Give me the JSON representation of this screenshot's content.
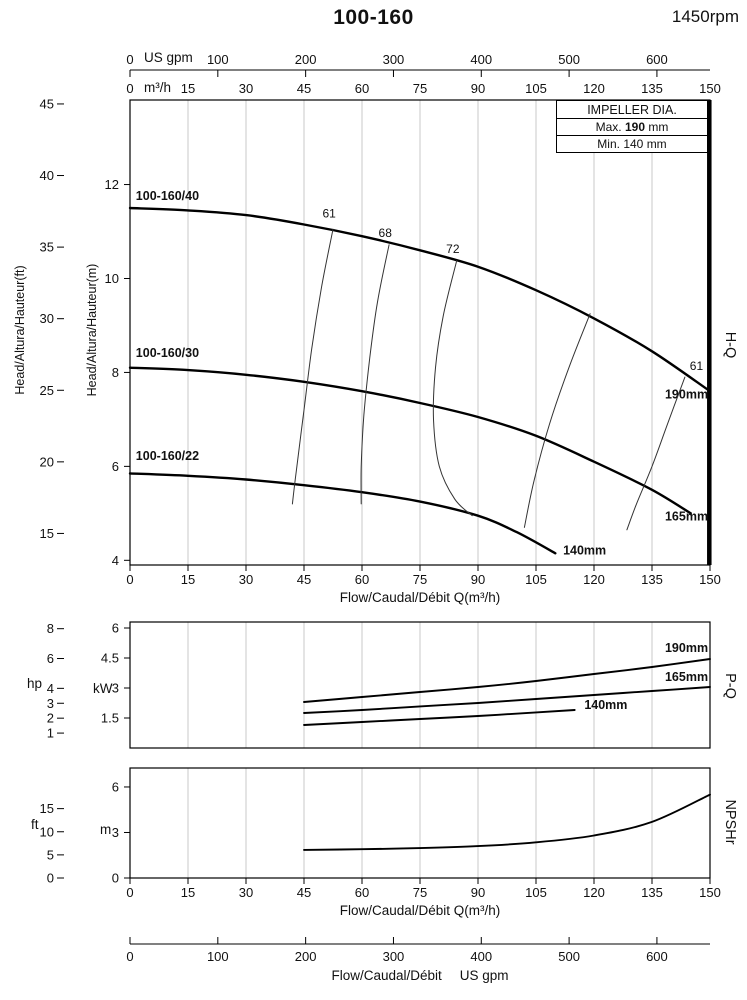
{
  "header": {
    "model": "100-160",
    "rpm": "1450rpm"
  },
  "impeller_box": {
    "title": "IMPELLER DIA.",
    "max_label": "Max.",
    "max_value": "190",
    "min_label": "Min.",
    "min_value": "140",
    "unit": "mm"
  },
  "axis_labels": {
    "flow_m3h": "Flow/Caudal/Débit Q(m³/h)",
    "flow_gpm_prefix": "Flow/Caudal/Débit",
    "gpm_unit": "US gpm",
    "m3h_unit": "m³/h",
    "head_ft": "Head/Altura/Hauteur(ft)",
    "head_m": "Head/Altura/Hauteur(m)",
    "hp_unit": "hp",
    "kw_unit": "kW",
    "ft_unit": "ft",
    "m_unit": "m",
    "hq": "H-Q",
    "pq": "P-Q",
    "npshr": "NPSHr"
  },
  "gpm_axis": {
    "unit": "US gpm",
    "ticks": [
      0,
      100,
      200,
      300,
      400,
      500,
      600
    ]
  },
  "chart_data": [
    {
      "id": "hq",
      "type": "line",
      "title": "H-Q",
      "xlabel": "Flow/Caudal/Débit Q(m³/h)",
      "ylabel_outer": "Head/Altura/Hauteur(ft)",
      "ylabel_inner": "Head/Altura/Hauteur(m)",
      "xlim": [
        0,
        150
      ],
      "ylim_m": [
        3.9,
        13.8
      ],
      "x_ticks": [
        0,
        15,
        30,
        45,
        60,
        75,
        90,
        105,
        120,
        135,
        150
      ],
      "y_ticks_m": [
        4,
        6,
        8,
        10,
        12
      ],
      "y_ticks_ft": [
        15,
        20,
        25,
        30,
        35,
        40,
        45
      ],
      "grid": "vertical",
      "legend": "none",
      "series": [
        {
          "name": "100-160/40",
          "impeller": "190mm",
          "x": [
            0,
            15,
            30,
            45,
            60,
            75,
            90,
            105,
            120,
            135,
            150
          ],
          "y": [
            11.5,
            11.45,
            11.35,
            11.15,
            10.9,
            10.6,
            10.25,
            9.75,
            9.15,
            8.45,
            7.6
          ],
          "name_pos": [
            1.5,
            11.67
          ],
          "end_label": "190mm",
          "end_label_pos": [
            149.5,
            7.45
          ],
          "end_anchor": "end"
        },
        {
          "name": "100-160/30",
          "impeller": "165mm",
          "x": [
            0,
            15,
            30,
            45,
            60,
            75,
            90,
            105,
            120,
            135,
            145
          ],
          "y": [
            8.1,
            8.05,
            7.95,
            7.8,
            7.6,
            7.35,
            7.05,
            6.65,
            6.1,
            5.5,
            5.0
          ],
          "name_pos": [
            1.5,
            8.33
          ],
          "end_label": "165mm",
          "end_label_pos": [
            149.5,
            4.85
          ],
          "end_anchor": "end"
        },
        {
          "name": "100-160/22",
          "impeller": "140mm",
          "x": [
            0,
            15,
            30,
            45,
            60,
            75,
            90,
            100,
            110
          ],
          "y": [
            5.85,
            5.8,
            5.72,
            5.6,
            5.45,
            5.25,
            4.95,
            4.6,
            4.15
          ],
          "name_pos": [
            1.5,
            6.14
          ],
          "end_label": "140mm",
          "end_label_pos": [
            112,
            4.12
          ],
          "end_anchor": "start"
        }
      ],
      "efficiency": [
        {
          "label": "61",
          "points": [
            [
              52.5,
              11.05
            ],
            [
              49.5,
              9.8
            ],
            [
              47,
              8.5
            ],
            [
              45,
              7.2
            ],
            [
              43,
              5.9
            ],
            [
              42,
              5.2
            ]
          ],
          "label_pos": [
            51.5,
            11.3
          ]
        },
        {
          "label": "68",
          "points": [
            [
              67,
              10.72
            ],
            [
              64,
              9.5
            ],
            [
              62,
              8.3
            ],
            [
              60.5,
              7.1
            ],
            [
              59.8,
              6.0
            ],
            [
              59.8,
              5.2
            ]
          ],
          "label_pos": [
            66,
            10.88
          ]
        },
        {
          "label": "72",
          "points": [
            [
              84.5,
              10.38
            ],
            [
              81,
              9.2
            ],
            [
              79,
              8.1
            ],
            [
              78.5,
              7.0
            ],
            [
              80,
              6.0
            ],
            [
              84,
              5.3
            ],
            [
              88.5,
              4.95
            ]
          ],
          "label_pos": [
            83.5,
            10.54
          ]
        },
        {
          "label": "",
          "points": [
            [
              119,
              9.25
            ],
            [
              113.5,
              8.1
            ],
            [
              108.5,
              6.9
            ],
            [
              104.5,
              5.7
            ],
            [
              102,
              4.7
            ]
          ],
          "label_pos": [
            0,
            0
          ]
        },
        {
          "label": "61",
          "points": [
            [
              143.5,
              7.9
            ],
            [
              139,
              6.9
            ],
            [
              135,
              6.0
            ],
            [
              131,
              5.2
            ],
            [
              128.5,
              4.65
            ]
          ],
          "label_pos": [
            146.5,
            8.05
          ]
        }
      ]
    },
    {
      "id": "pq",
      "type": "line",
      "title": "P-Q",
      "xlim": [
        0,
        150
      ],
      "ylim_kw": [
        0,
        6.3
      ],
      "y_ticks_kw": [
        1.5,
        3,
        4.5,
        6
      ],
      "y_ticks_hp": [
        1,
        2,
        3,
        4,
        6,
        8
      ],
      "grid": "vertical",
      "series": [
        {
          "name": "190mm",
          "x": [
            45,
            60,
            75,
            90,
            105,
            120,
            135,
            150
          ],
          "y": [
            2.3,
            2.55,
            2.8,
            3.05,
            3.35,
            3.7,
            4.05,
            4.45
          ],
          "label_pos": [
            149.5,
            4.8
          ],
          "anchor": "end"
        },
        {
          "name": "165mm",
          "x": [
            45,
            60,
            75,
            90,
            105,
            120,
            135,
            150
          ],
          "y": [
            1.75,
            1.9,
            2.08,
            2.25,
            2.45,
            2.65,
            2.85,
            3.05
          ],
          "label_pos": [
            149.5,
            3.35
          ],
          "anchor": "end"
        },
        {
          "name": "140mm",
          "x": [
            45,
            60,
            75,
            90,
            105,
            115
          ],
          "y": [
            1.15,
            1.3,
            1.45,
            1.6,
            1.78,
            1.9
          ],
          "label_pos": [
            117.5,
            1.95
          ],
          "anchor": "start"
        }
      ]
    },
    {
      "id": "npshr",
      "type": "line",
      "title": "NPSHr",
      "xlabel": "Flow/Caudal/Débit Q(m³/h)",
      "xlim": [
        0,
        150
      ],
      "ylim_m": [
        0,
        7.25
      ],
      "x_ticks": [
        0,
        15,
        30,
        45,
        60,
        75,
        90,
        105,
        120,
        135,
        150
      ],
      "y_ticks_m": [
        0,
        3,
        6
      ],
      "y_ticks_ft": [
        0,
        5,
        10,
        15
      ],
      "grid": "vertical",
      "series": [
        {
          "name": "NPSHr",
          "x": [
            45,
            60,
            75,
            90,
            105,
            120,
            135,
            150
          ],
          "y": [
            1.85,
            1.9,
            1.97,
            2.1,
            2.35,
            2.8,
            3.7,
            5.5
          ]
        }
      ]
    }
  ]
}
